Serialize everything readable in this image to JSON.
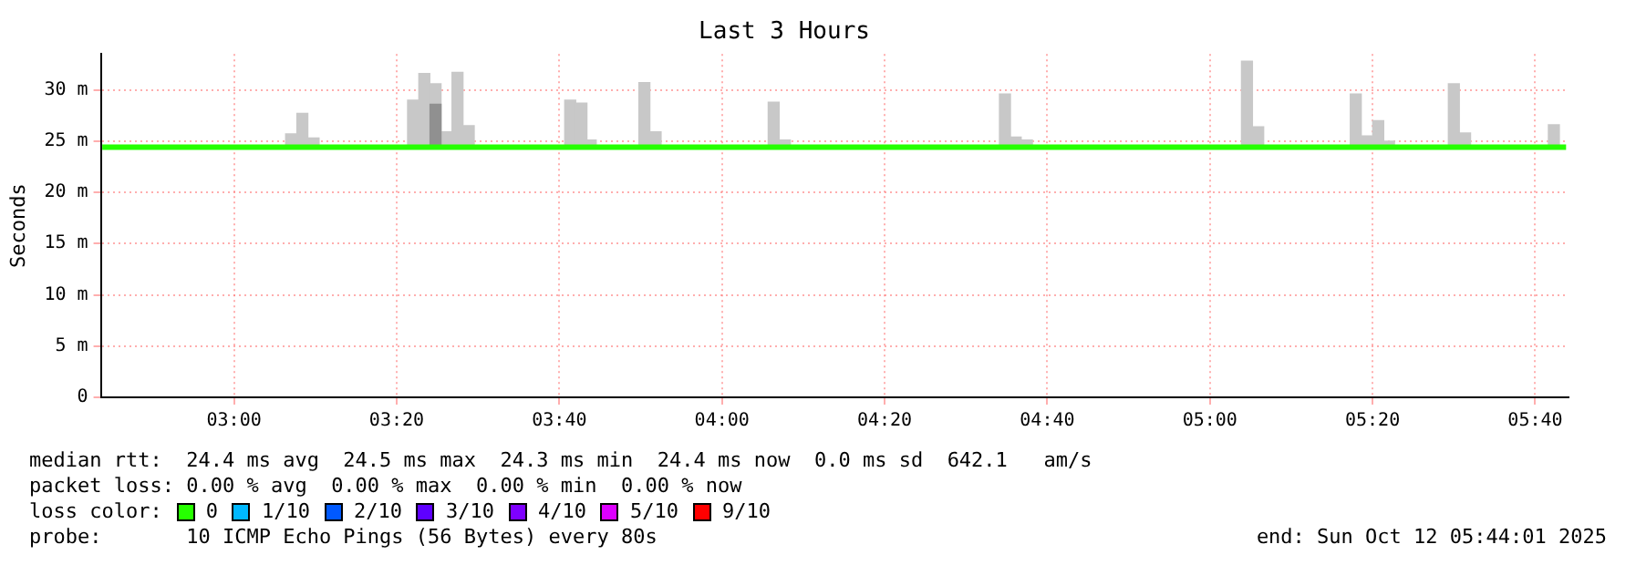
{
  "chart_data": {
    "type": "line",
    "title": "Last 3 Hours",
    "ylabel": "Seconds",
    "xlim": [
      2.727,
      5.735
    ],
    "xticks": [
      {
        "value": 3,
        "label": "03:00"
      },
      {
        "value": 3.3333,
        "label": "03:20"
      },
      {
        "value": 3.6667,
        "label": "03:40"
      },
      {
        "value": 4,
        "label": "04:00"
      },
      {
        "value": 4.3333,
        "label": "04:20"
      },
      {
        "value": 4.6667,
        "label": "04:40"
      },
      {
        "value": 5,
        "label": "05:00"
      },
      {
        "value": 5.3333,
        "label": "05:20"
      },
      {
        "value": 5.6667,
        "label": "05:40"
      }
    ],
    "ylim": [
      0,
      33.5
    ],
    "yticks": [
      {
        "value": 0,
        "label": "0"
      },
      {
        "value": 5,
        "label": "5 m"
      },
      {
        "value": 10,
        "label": "10 m"
      },
      {
        "value": 15,
        "label": "15 m"
      },
      {
        "value": 20,
        "label": "20 m"
      },
      {
        "value": 25,
        "label": "25 m"
      },
      {
        "value": 30,
        "label": "30 m"
      }
    ],
    "grid": true,
    "legend": "bottom",
    "legend_title": "loss color:",
    "series": [
      {
        "type": "bar",
        "color": "#c8c8c8",
        "x": [
          3.117,
          3.14,
          3.163,
          3.367,
          3.39,
          3.413,
          3.436,
          3.458,
          3.481,
          3.689,
          3.712,
          3.731,
          3.841,
          3.864,
          4.106,
          4.129,
          4.58,
          4.602,
          4.625,
          5.076,
          5.099,
          5.299,
          5.322,
          5.345,
          5.367,
          5.5,
          5.523,
          5.705
        ],
        "base": [
          24.4,
          24.4,
          24.4,
          24.4,
          24.4,
          24.4,
          24.4,
          24.4,
          24.4,
          24.4,
          24.4,
          24.4,
          24.4,
          24.4,
          24.4,
          24.4,
          24.4,
          24.4,
          24.4,
          24.4,
          24.4,
          24.4,
          24.4,
          24.4,
          24.4,
          24.4,
          24.4,
          24.4
        ],
        "values": [
          1.3,
          3.3,
          0.9,
          4.6,
          7.2,
          6.2,
          1.5,
          7.3,
          2.1,
          4.6,
          4.3,
          0.7,
          6.3,
          1.5,
          4.4,
          0.7,
          5.2,
          1,
          0.7,
          8.4,
          2,
          5.2,
          1.1,
          2.6,
          0.6,
          6.2,
          1.4,
          2.2
        ]
      },
      {
        "type": "bar",
        "color": "#909090",
        "x": [
          3.413
        ],
        "base": [
          24.4
        ],
        "values": [
          4.2
        ]
      },
      {
        "name": "0",
        "type": "line",
        "color": "#26ff00",
        "x": [
          2.73,
          2.9,
          3.0,
          3.2,
          3.4,
          3.6,
          3.8,
          4.0,
          4.2,
          4.4,
          4.6,
          4.8,
          5.0,
          5.2,
          5.4,
          5.6,
          5.73
        ],
        "values": [
          24.4,
          24.4,
          24.4,
          24.4,
          24.4,
          24.4,
          24.4,
          24.4,
          24.4,
          24.4,
          24.4,
          24.4,
          24.4,
          24.4,
          24.4,
          24.4,
          24.4
        ]
      },
      {
        "name": "1/10",
        "type": "line",
        "color": "#00b8ff"
      },
      {
        "name": "2/10",
        "type": "line",
        "color": "#0059ff"
      },
      {
        "name": "3/10",
        "type": "line",
        "color": "#5e00ff"
      },
      {
        "name": "4/10",
        "type": "line",
        "color": "#7e00ff"
      },
      {
        "name": "5/10",
        "type": "line",
        "color": "#dd00ff"
      },
      {
        "name": "9/10",
        "type": "line",
        "color": "#ff0000"
      }
    ],
    "annotations": [
      "median rtt:  24.4 ms avg  24.5 ms max  24.3 ms min  24.4 ms now  0.0 ms sd  642.1   am/s",
      "packet loss: 0.00 % avg  0.00 % max  0.00 % min  0.00 % now",
      "probe:       10 ICMP Echo Pings (56 Bytes) every 80s",
      "end: Sun Oct 12 05:44:01 2025"
    ]
  }
}
